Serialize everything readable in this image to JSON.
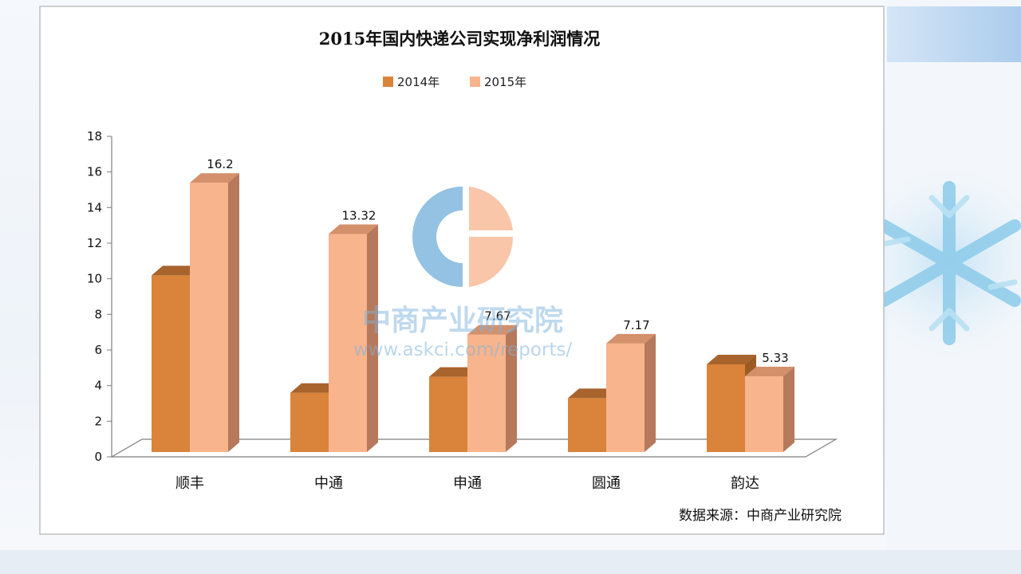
{
  "colors": {
    "series_2014": "#d9843a",
    "series_2015": "#f8b48d",
    "watermark_blue": "#6aaad6",
    "watermark_peach": "#f6b08a"
  },
  "watermark": {
    "brand": "中商产业研究院",
    "url": "www.askci.com/reports/"
  },
  "source_note": "数据来源：中商产业研究院",
  "chart_data": {
    "type": "bar",
    "title": "2015年国内快递公司实现净利润情况",
    "categories": [
      "顺丰",
      "中通",
      "申通",
      "圆通",
      "韵达"
    ],
    "series": [
      {
        "name": "2014年",
        "values": [
          11.0,
          4.4,
          5.3,
          4.1,
          6.0
        ],
        "labels": []
      },
      {
        "name": "2015年",
        "values": [
          16.2,
          13.32,
          7.67,
          7.17,
          5.33
        ],
        "labels": [
          "16.2",
          "13.32",
          "7.67",
          "7.17",
          "5.33"
        ]
      }
    ],
    "yticks": [
      "0",
      "2",
      "4",
      "6",
      "8",
      "10",
      "12",
      "14",
      "16",
      "18"
    ],
    "ylim": [
      0,
      18
    ],
    "legend_position": "top"
  }
}
